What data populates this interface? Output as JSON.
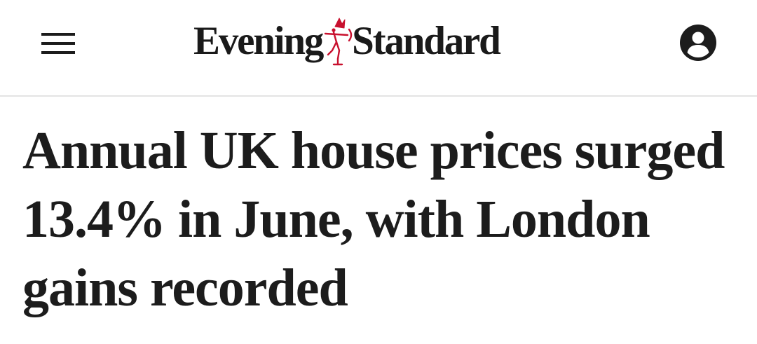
{
  "header": {
    "menu_icon": "hamburger-menu-icon",
    "logo": {
      "word_left": "Evening",
      "word_right": "Standard",
      "emblem_icon": "eros-statue-icon",
      "emblem_color": "#c8102e"
    },
    "account_icon": "user-account-icon"
  },
  "article": {
    "headline": "Annual UK house prices surged 13.4% in June, with London gains recorded"
  },
  "colors": {
    "text": "#1c1c1c",
    "divider": "#e4e4e4",
    "background": "#ffffff"
  }
}
